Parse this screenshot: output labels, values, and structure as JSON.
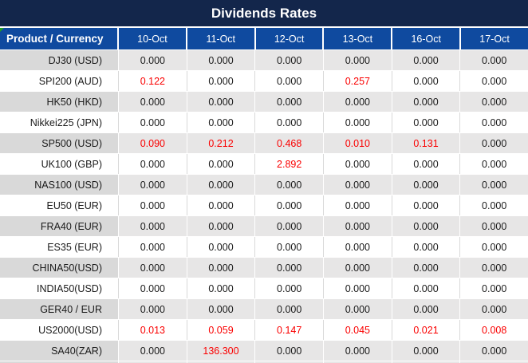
{
  "title": "Dividends Rates",
  "table": {
    "header": {
      "product_label": "Product / Currency",
      "dates": [
        "10-Oct",
        "11-Oct",
        "12-Oct",
        "13-Oct",
        "16-Oct",
        "17-Oct"
      ]
    },
    "rows": [
      {
        "product": "DJ30 (USD)",
        "values": [
          "0.000",
          "0.000",
          "0.000",
          "0.000",
          "0.000",
          "0.000"
        ],
        "red": []
      },
      {
        "product": "SPI200 (AUD)",
        "values": [
          "0.122",
          "0.000",
          "0.000",
          "0.257",
          "0.000",
          "0.000"
        ],
        "red": [
          0,
          3
        ]
      },
      {
        "product": "HK50 (HKD)",
        "values": [
          "0.000",
          "0.000",
          "0.000",
          "0.000",
          "0.000",
          "0.000"
        ],
        "red": []
      },
      {
        "product": "Nikkei225 (JPN)",
        "values": [
          "0.000",
          "0.000",
          "0.000",
          "0.000",
          "0.000",
          "0.000"
        ],
        "red": []
      },
      {
        "product": "SP500 (USD)",
        "values": [
          "0.090",
          "0.212",
          "0.468",
          "0.010",
          "0.131",
          "0.000"
        ],
        "red": [
          0,
          1,
          2,
          3,
          4
        ]
      },
      {
        "product": "UK100 (GBP)",
        "values": [
          "0.000",
          "0.000",
          "2.892",
          "0.000",
          "0.000",
          "0.000"
        ],
        "red": [
          2
        ]
      },
      {
        "product": "NAS100 (USD)",
        "values": [
          "0.000",
          "0.000",
          "0.000",
          "0.000",
          "0.000",
          "0.000"
        ],
        "red": []
      },
      {
        "product": "EU50 (EUR)",
        "values": [
          "0.000",
          "0.000",
          "0.000",
          "0.000",
          "0.000",
          "0.000"
        ],
        "red": []
      },
      {
        "product": "FRA40 (EUR)",
        "values": [
          "0.000",
          "0.000",
          "0.000",
          "0.000",
          "0.000",
          "0.000"
        ],
        "red": []
      },
      {
        "product": "ES35 (EUR)",
        "values": [
          "0.000",
          "0.000",
          "0.000",
          "0.000",
          "0.000",
          "0.000"
        ],
        "red": []
      },
      {
        "product": "CHINA50(USD)",
        "values": [
          "0.000",
          "0.000",
          "0.000",
          "0.000",
          "0.000",
          "0.000"
        ],
        "red": []
      },
      {
        "product": "INDIA50(USD)",
        "values": [
          "0.000",
          "0.000",
          "0.000",
          "0.000",
          "0.000",
          "0.000"
        ],
        "red": []
      },
      {
        "product": "GER40 / EUR",
        "values": [
          "0.000",
          "0.000",
          "0.000",
          "0.000",
          "0.000",
          "0.000"
        ],
        "red": []
      },
      {
        "product": "US2000(USD)",
        "values": [
          "0.013",
          "0.059",
          "0.147",
          "0.045",
          "0.021",
          "0.008"
        ],
        "red": [
          0,
          1,
          2,
          3,
          4,
          5
        ]
      },
      {
        "product": "SA40(ZAR)",
        "values": [
          "0.000",
          "136.300",
          "0.000",
          "0.000",
          "0.000",
          "0.000"
        ],
        "red": [
          1
        ]
      }
    ]
  },
  "colors": {
    "title_bg": "#13264B",
    "header_bg": "#0F4A9F",
    "row_gray_label": "#D9D9D9",
    "row_gray_data": "#E7E6E6",
    "negative_value": "#FA0000",
    "text": "#1A1A1A",
    "corner_marker_green": "#21A121"
  }
}
